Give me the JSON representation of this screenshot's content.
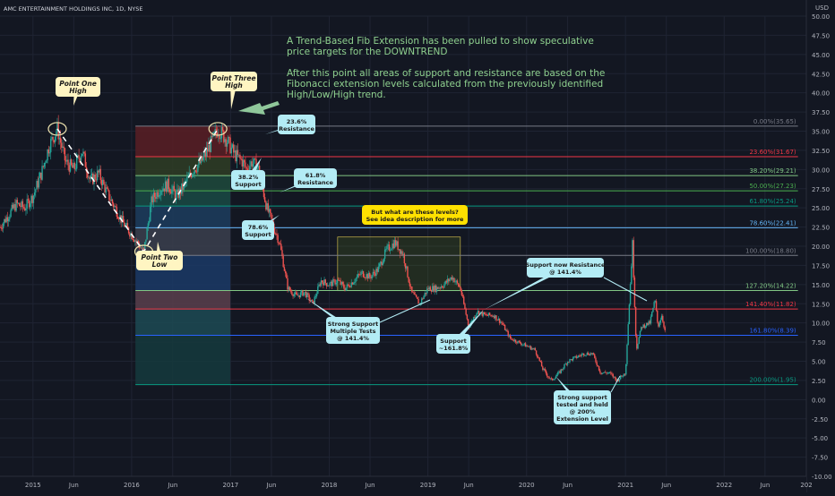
{
  "header": {
    "symbol": "AMC ENTERTAINMENT HOLDINGS INC, 1D, NYSE",
    "currency": "USD"
  },
  "colors": {
    "background": "#131722",
    "grid": "#1f2433",
    "candle_up": "#26a69a",
    "candle_down": "#ef5350",
    "note_text": "#8fd18f",
    "callout_cream": "#fff5c2",
    "callout_cyan": "#b3ecf5",
    "callout_yellow": "#ffe100",
    "arrow_green": "#8fc79a"
  },
  "annotation_text": [
    "A Trend-Based Fib Extension has been pulled to show speculative",
    "price targets for the DOWNTREND",
    "",
    "After this point all areas of support and resistance are based on the",
    "Fibonacci extension levels calculated from the previously identified",
    "High/Low/High trend."
  ],
  "callouts": [
    {
      "id": "point-one-high",
      "lines": [
        "Point One",
        "High"
      ],
      "style": "cream"
    },
    {
      "id": "point-two-low",
      "lines": [
        "Point Two",
        "Low"
      ],
      "style": "cream"
    },
    {
      "id": "point-three-high",
      "lines": [
        "Point Three",
        "High"
      ],
      "style": "cream"
    },
    {
      "id": "resistance-236",
      "lines": [
        "23.6%",
        "Resistance"
      ],
      "style": "cyan"
    },
    {
      "id": "support-382",
      "lines": [
        "38.2%",
        "Support"
      ],
      "style": "cyan"
    },
    {
      "id": "resistance-618",
      "lines": [
        "61.8%",
        "Resistance"
      ],
      "style": "cyan"
    },
    {
      "id": "support-786",
      "lines": [
        "78.6%",
        "Support"
      ],
      "style": "cyan"
    },
    {
      "id": "levels-question",
      "lines": [
        "But what are these levels?",
        "See idea description for more"
      ],
      "style": "yellow"
    },
    {
      "id": "strong-support-multiple",
      "lines": [
        "Strong Support",
        "Multiple Tests",
        "@ 141.4%"
      ],
      "style": "cyan"
    },
    {
      "id": "support-1618",
      "lines": [
        "Support",
        "~161.8%"
      ],
      "style": "cyan"
    },
    {
      "id": "support-now-resistance",
      "lines": [
        "Support now Resistance",
        "@ 141.4%"
      ],
      "style": "cyan"
    },
    {
      "id": "strong-support-200",
      "lines": [
        "Strong support",
        "tested and held",
        "@ 200%",
        "Extension Level"
      ],
      "style": "cyan"
    }
  ],
  "chart_data": {
    "type": "candlestick",
    "title": "AMC ENTERTAINMENT HOLDINGS INC, 1D, NYSE",
    "ylabel": "USD",
    "ylim": [
      -10,
      50
    ],
    "xlim": [
      "2014-09-01",
      "2022-11-01"
    ],
    "y_ticks": [
      50,
      47.5,
      45,
      42.5,
      40,
      37.5,
      35,
      32.5,
      30,
      27.5,
      25,
      22.5,
      20,
      17.5,
      15,
      12.5,
      10,
      7.5,
      5,
      2.5,
      0,
      -2.5,
      -5,
      -7.5,
      -10
    ],
    "y_tick_labels": [
      "50.00",
      "47.50",
      "45.00",
      "42.50",
      "40.00",
      "37.50",
      "35.00",
      "32.50",
      "30.00",
      "27.50",
      "25.00",
      "22.50",
      "20.00",
      "17.50",
      "15.00",
      "12.50",
      "10.00",
      "7.50",
      "5.00",
      "2.50",
      "0.00",
      "-2.50",
      "-5.00",
      "-7.50",
      "-10.00"
    ],
    "x_ticks": [
      {
        "label": "2015",
        "date": "2015-01-01"
      },
      {
        "label": "Jun",
        "date": "2015-06-01"
      },
      {
        "label": "2016",
        "date": "2016-01-01"
      },
      {
        "label": "Jun",
        "date": "2016-06-01"
      },
      {
        "label": "2017",
        "date": "2017-01-01"
      },
      {
        "label": "Jun",
        "date": "2017-06-01"
      },
      {
        "label": "2018",
        "date": "2018-01-01"
      },
      {
        "label": "Jun",
        "date": "2018-06-01"
      },
      {
        "label": "2019",
        "date": "2019-01-01"
      },
      {
        "label": "Jun",
        "date": "2019-06-01"
      },
      {
        "label": "2020",
        "date": "2020-01-01"
      },
      {
        "label": "Jun",
        "date": "2020-06-01"
      },
      {
        "label": "2021",
        "date": "2021-01-01"
      },
      {
        "label": "Jun",
        "date": "2021-06-01"
      },
      {
        "label": "2022",
        "date": "2022-01-01"
      },
      {
        "label": "Jun",
        "date": "2022-06-01"
      },
      {
        "label": "202",
        "date": "2022-11-01"
      }
    ],
    "fib_extension": {
      "start_date": "2016-01-15",
      "end_date": "2016-12-31",
      "line_end_date": "2022-10-01",
      "levels": [
        {
          "label": "0.00%(35.65)",
          "value": 35.65,
          "color": "#787b86",
          "zone": "#5a1e24"
        },
        {
          "label": "23.60%(31.67)",
          "value": 31.67,
          "color": "#f23645",
          "zone": "#2f3d24"
        },
        {
          "label": "38.20%(29.21)",
          "value": 29.21,
          "color": "#81c784",
          "zone": "#1e4a3c"
        },
        {
          "label": "50.00%(27.23)",
          "value": 27.23,
          "color": "#4caf50",
          "zone": "#1a4a44"
        },
        {
          "label": "61.80%(25.24)",
          "value": 25.24,
          "color": "#089981",
          "zone": "#1d3d5e"
        },
        {
          "label": "78.60%(22.41)",
          "value": 22.41,
          "color": "#64b5f6",
          "zone": "#3b3f4e"
        },
        {
          "label": "100.00%(18.80)",
          "value": 18.8,
          "color": "#787b86",
          "zone": "#1b3a66"
        },
        {
          "label": "127.20%(14.22)",
          "value": 14.22,
          "color": "#81c784",
          "zone": "#5a404c"
        },
        {
          "label": "141.40%(11.82)",
          "value": 11.82,
          "color": "#f23645",
          "zone": "#1d4a54"
        },
        {
          "label": "161.80%(8.39)",
          "value": 8.39,
          "color": "#2962ff",
          "zone": "#15393d"
        },
        {
          "label": "200.00%(1.95)",
          "value": 1.95,
          "color": "#089981",
          "zone": null
        }
      ]
    },
    "trend_points": [
      {
        "name": "Point One High",
        "date": "2015-04-01",
        "value": 35.3
      },
      {
        "name": "Point Two Low",
        "date": "2016-02-15",
        "value": 19.3
      },
      {
        "name": "Point Three High",
        "date": "2016-11-15",
        "value": 35.3
      }
    ],
    "price_path": [
      [
        "2014-09-01",
        22.5
      ],
      [
        "2014-10-01",
        24.0
      ],
      [
        "2014-11-01",
        25.5
      ],
      [
        "2014-12-01",
        25.0
      ],
      [
        "2015-01-01",
        26.5
      ],
      [
        "2015-02-01",
        29.5
      ],
      [
        "2015-03-01",
        33.0
      ],
      [
        "2015-04-01",
        35.3
      ],
      [
        "2015-05-01",
        31.0
      ],
      [
        "2015-06-01",
        30.0
      ],
      [
        "2015-07-01",
        32.5
      ],
      [
        "2015-08-01",
        28.5
      ],
      [
        "2015-09-01",
        29.5
      ],
      [
        "2015-10-01",
        27.0
      ],
      [
        "2015-11-01",
        25.0
      ],
      [
        "2015-12-01",
        23.0
      ],
      [
        "2016-01-01",
        21.5
      ],
      [
        "2016-02-15",
        19.3
      ],
      [
        "2016-03-15",
        26.0
      ],
      [
        "2016-04-15",
        27.5
      ],
      [
        "2016-05-15",
        28.0
      ],
      [
        "2016-06-15",
        26.5
      ],
      [
        "2016-07-15",
        28.0
      ],
      [
        "2016-08-15",
        30.0
      ],
      [
        "2016-09-15",
        31.0
      ],
      [
        "2016-10-15",
        33.0
      ],
      [
        "2016-11-15",
        35.3
      ],
      [
        "2016-12-15",
        34.0
      ],
      [
        "2017-01-15",
        32.0
      ],
      [
        "2017-02-15",
        31.0
      ],
      [
        "2017-03-01",
        30.0
      ],
      [
        "2017-03-20",
        31.0
      ],
      [
        "2017-04-15",
        30.0
      ],
      [
        "2017-05-15",
        25.0
      ],
      [
        "2017-06-15",
        22.0
      ],
      [
        "2017-07-01",
        20.5
      ],
      [
        "2017-08-01",
        14.5
      ],
      [
        "2017-09-01",
        13.5
      ],
      [
        "2017-10-01",
        14.0
      ],
      [
        "2017-11-01",
        12.5
      ],
      [
        "2017-12-01",
        15.5
      ],
      [
        "2018-01-01",
        15.0
      ],
      [
        "2018-02-01",
        15.5
      ],
      [
        "2018-03-01",
        14.5
      ],
      [
        "2018-04-01",
        15.5
      ],
      [
        "2018-05-01",
        16.5
      ],
      [
        "2018-06-01",
        16.0
      ],
      [
        "2018-07-01",
        17.0
      ],
      [
        "2018-08-01",
        19.5
      ],
      [
        "2018-09-01",
        20.5
      ],
      [
        "2018-10-01",
        19.0
      ],
      [
        "2018-11-01",
        14.0
      ],
      [
        "2018-12-01",
        12.5
      ],
      [
        "2019-01-01",
        14.5
      ],
      [
        "2019-02-01",
        14.5
      ],
      [
        "2019-03-01",
        15.0
      ],
      [
        "2019-04-01",
        16.0
      ],
      [
        "2019-05-01",
        14.5
      ],
      [
        "2019-06-01",
        9.5
      ],
      [
        "2019-07-01",
        11.5
      ],
      [
        "2019-08-01",
        11.0
      ],
      [
        "2019-09-01",
        11.0
      ],
      [
        "2019-10-01",
        10.0
      ],
      [
        "2019-11-01",
        8.0
      ],
      [
        "2019-12-01",
        7.5
      ],
      [
        "2020-01-01",
        7.0
      ],
      [
        "2020-02-01",
        6.5
      ],
      [
        "2020-03-01",
        4.0
      ],
      [
        "2020-04-01",
        2.5
      ],
      [
        "2020-05-01",
        3.5
      ],
      [
        "2020-06-01",
        5.0
      ],
      [
        "2020-07-01",
        5.5
      ],
      [
        "2020-08-01",
        6.0
      ],
      [
        "2020-09-01",
        6.0
      ],
      [
        "2020-10-01",
        3.5
      ],
      [
        "2020-11-01",
        3.5
      ],
      [
        "2020-12-01",
        2.5
      ],
      [
        "2021-01-01",
        3.5
      ],
      [
        "2021-01-27",
        20.3
      ],
      [
        "2021-02-10",
        6.5
      ],
      [
        "2021-03-01",
        9.5
      ],
      [
        "2021-04-01",
        10.0
      ],
      [
        "2021-04-20",
        13.0
      ],
      [
        "2021-05-01",
        9.5
      ],
      [
        "2021-05-15",
        11.0
      ],
      [
        "2021-05-27",
        9.0
      ]
    ]
  }
}
